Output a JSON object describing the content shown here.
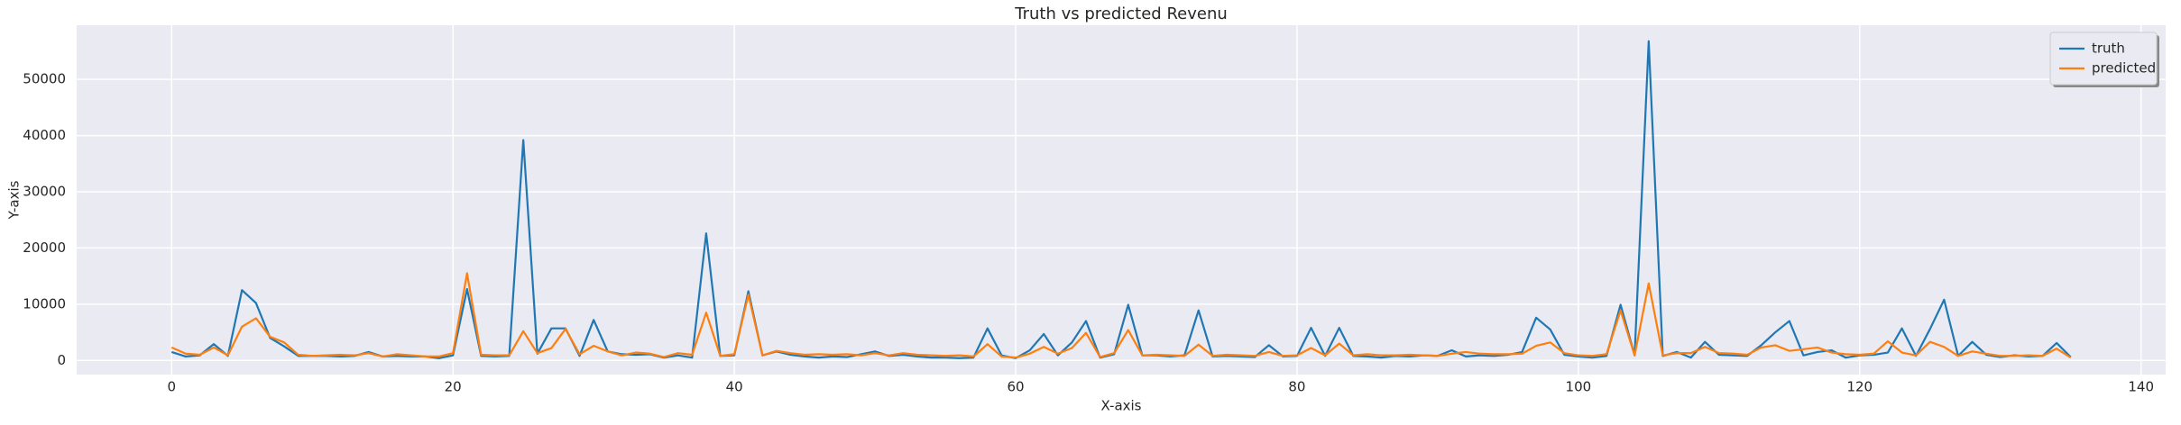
{
  "chart_data": {
    "type": "line",
    "title": "Truth vs predicted Revenu",
    "xlabel": "X-axis",
    "ylabel": "Y-axis",
    "x": [
      0,
      1,
      2,
      3,
      4,
      5,
      6,
      7,
      8,
      9,
      10,
      11,
      12,
      13,
      14,
      15,
      16,
      17,
      18,
      19,
      20,
      21,
      22,
      23,
      24,
      25,
      26,
      27,
      28,
      29,
      30,
      31,
      32,
      33,
      34,
      35,
      36,
      37,
      38,
      39,
      40,
      41,
      42,
      43,
      44,
      45,
      46,
      47,
      48,
      49,
      50,
      51,
      52,
      53,
      54,
      55,
      56,
      57,
      58,
      59,
      60,
      61,
      62,
      63,
      64,
      65,
      66,
      67,
      68,
      69,
      70,
      71,
      72,
      73,
      74,
      75,
      76,
      77,
      78,
      79,
      80,
      81,
      82,
      83,
      84,
      85,
      86,
      87,
      88,
      89,
      90,
      91,
      92,
      93,
      94,
      95,
      96,
      97,
      98,
      99,
      100,
      101,
      102,
      103,
      104,
      105,
      106,
      107,
      108,
      109,
      110,
      111,
      112,
      113,
      114,
      115,
      116,
      117,
      118,
      119,
      120,
      121,
      122,
      123,
      124,
      125,
      126,
      127,
      128,
      129,
      130,
      131,
      132,
      133,
      134,
      135
    ],
    "series": [
      {
        "name": "truth",
        "color": "#1f77b4",
        "values": [
          1500,
          700,
          900,
          2900,
          800,
          12500,
          10200,
          4000,
          2500,
          800,
          800,
          800,
          700,
          800,
          1500,
          700,
          800,
          700,
          700,
          400,
          900,
          12700,
          800,
          700,
          800,
          39200,
          1200,
          5700,
          5700,
          800,
          7200,
          1600,
          1100,
          1000,
          1100,
          500,
          900,
          500,
          22600,
          800,
          900,
          12300,
          900,
          1600,
          1000,
          700,
          500,
          700,
          600,
          1100,
          1600,
          800,
          1000,
          700,
          500,
          500,
          400,
          500,
          5700,
          900,
          400,
          1800,
          4700,
          900,
          3200,
          7000,
          500,
          1100,
          9900,
          900,
          900,
          700,
          900,
          8900,
          700,
          800,
          700,
          600,
          2700,
          700,
          800,
          5800,
          800,
          5800,
          800,
          700,
          500,
          800,
          700,
          900,
          800,
          1800,
          700,
          900,
          800,
          1000,
          1500,
          7600,
          5500,
          1000,
          700,
          500,
          800,
          9900,
          900,
          56800,
          800,
          1500,
          500,
          3300,
          1000,
          900,
          800,
          2700,
          5000,
          7000,
          900,
          1500,
          1800,
          500,
          900,
          1000,
          1400,
          5700,
          800,
          5600,
          10800,
          800,
          3300,
          1000,
          600,
          900,
          700,
          800,
          3100,
          600
        ]
      },
      {
        "name": "predicted",
        "color": "#ff7f0e",
        "values": [
          2300,
          1200,
          1000,
          2300,
          900,
          6000,
          7500,
          4200,
          3200,
          1000,
          800,
          900,
          1000,
          900,
          1300,
          700,
          1100,
          900,
          700,
          700,
          1300,
          15500,
          1000,
          900,
          900,
          5200,
          1300,
          2200,
          5600,
          1100,
          2600,
          1600,
          900,
          1400,
          1200,
          600,
          1300,
          1000,
          8500,
          800,
          1100,
          11700,
          900,
          1700,
          1300,
          1000,
          1100,
          1000,
          1100,
          900,
          1300,
          900,
          1300,
          1000,
          900,
          800,
          900,
          700,
          2900,
          700,
          500,
          1200,
          2400,
          1200,
          2200,
          4900,
          600,
          1300,
          5400,
          900,
          1000,
          900,
          800,
          2800,
          800,
          1000,
          900,
          800,
          1500,
          800,
          900,
          2200,
          900,
          3000,
          900,
          1100,
          900,
          900,
          1000,
          900,
          800,
          1200,
          1500,
          1200,
          1100,
          1100,
          1200,
          2600,
          3200,
          1300,
          900,
          800,
          1100,
          8900,
          900,
          13700,
          900,
          1300,
          1300,
          2400,
          1300,
          1200,
          1000,
          2300,
          2700,
          1700,
          2000,
          2300,
          1400,
          1100,
          1000,
          1200,
          3400,
          1400,
          900,
          3300,
          2400,
          800,
          1600,
          1200,
          800,
          800,
          900,
          800,
          2100,
          500
        ]
      }
    ],
    "xlim": [
      -6.75,
      141.75
    ],
    "xticks": [
      0,
      20,
      40,
      60,
      80,
      100,
      120,
      140
    ],
    "ylim": [
      -2520,
      59640
    ],
    "yticks": [
      0,
      10000,
      20000,
      30000,
      40000,
      50000
    ],
    "grid": true,
    "legend": "upper right"
  }
}
